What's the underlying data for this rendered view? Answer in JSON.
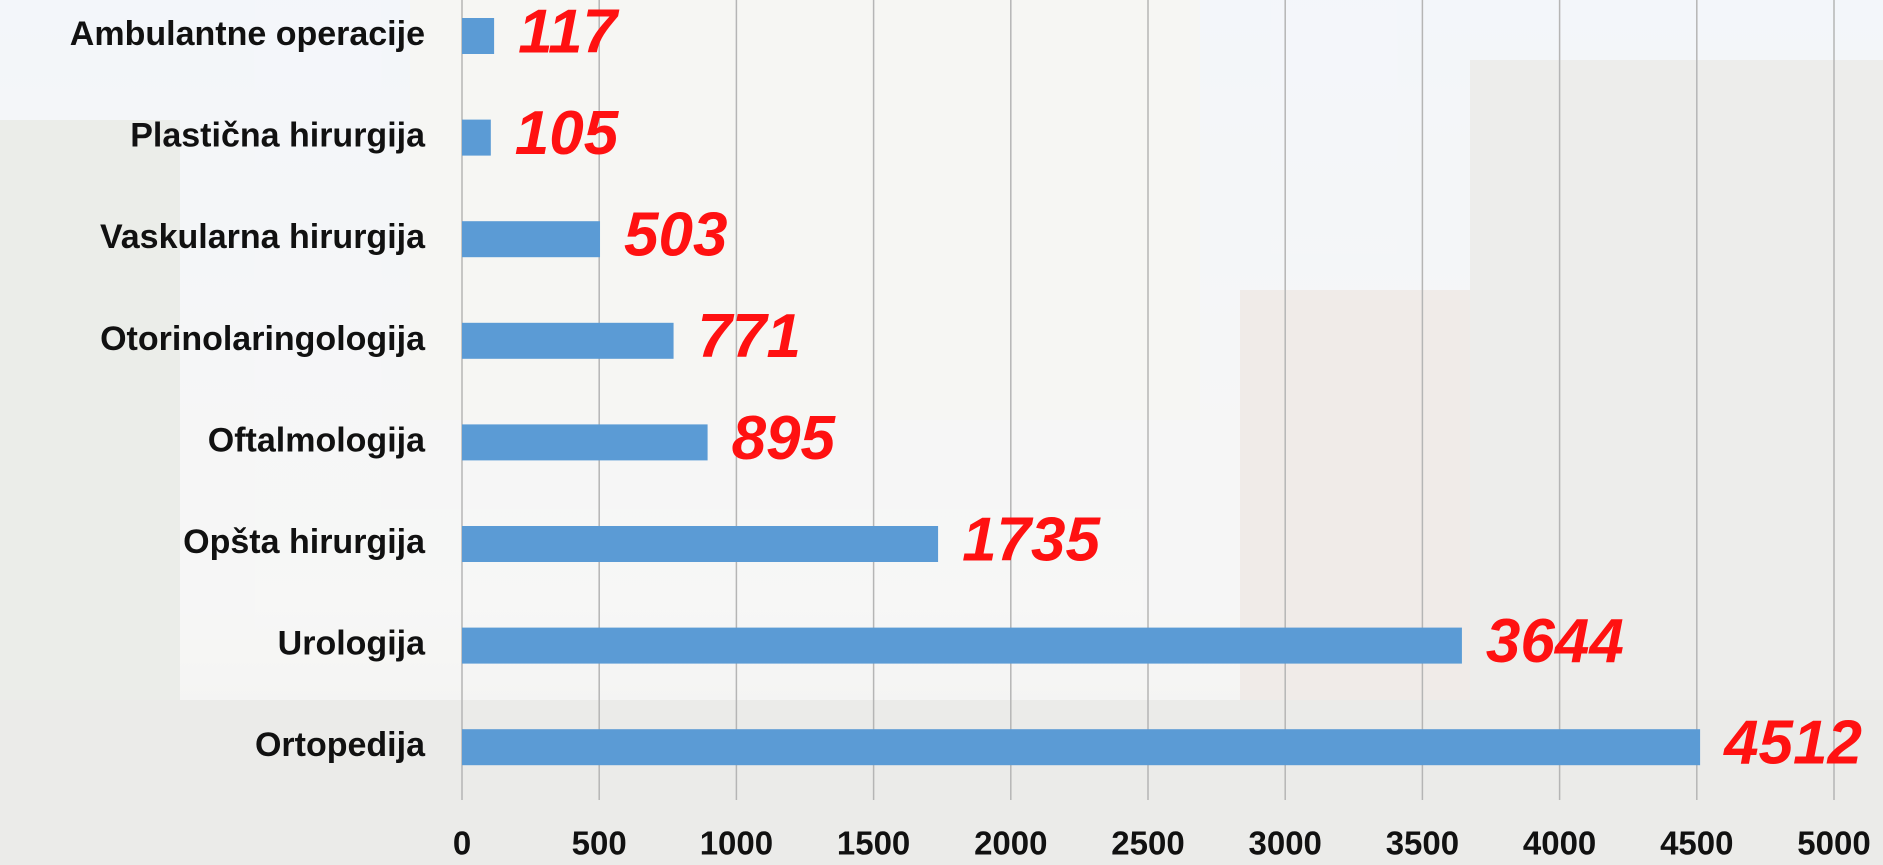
{
  "chart_data": {
    "type": "bar",
    "orientation": "horizontal",
    "categories": [
      "Ambulantne operacije",
      "Plastična hirurgija",
      "Vaskularna hirurgija",
      "Otorinolaringologija",
      "Oftalmologija",
      "Opšta hirurgija",
      "Urologija",
      "Ortopedija"
    ],
    "values": [
      117,
      105,
      503,
      771,
      895,
      1735,
      3644,
      4512
    ],
    "color": "#5b9bd5",
    "xlim": [
      0,
      5000
    ],
    "xticks": [
      0,
      500,
      1000,
      1500,
      2000,
      2500,
      3000,
      3500,
      4000,
      4500,
      5000
    ],
    "grid": true
  }
}
